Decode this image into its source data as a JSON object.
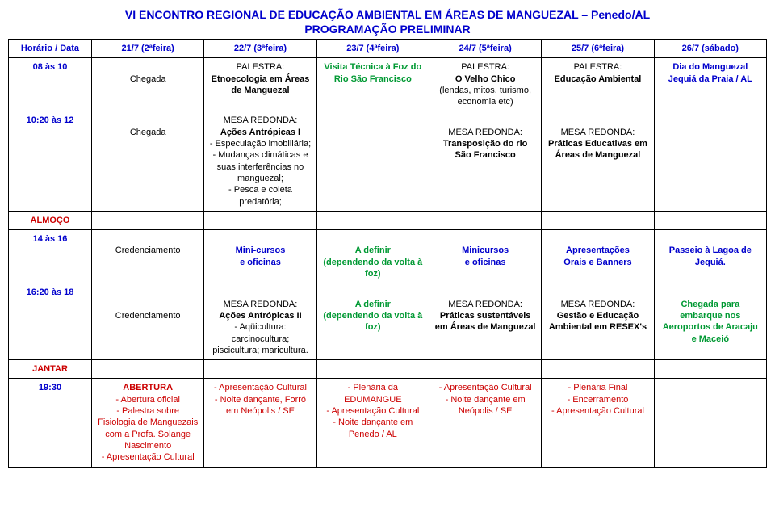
{
  "header": {
    "title": "VI ENCONTRO REGIONAL DE EDUCAÇÃO AMBIENTAL EM ÁREAS DE MANGUEZAL – Penedo/AL",
    "subtitle": "PROGRAMAÇÃO PRELIMINAR"
  },
  "columns": {
    "h0": "Horário / Data",
    "h1": "21/7 (2ªfeira)",
    "h2": "22/7 (3ªfeira)",
    "h3": "23/7 (4ªfeira)",
    "h4": "24/7 (5ªfeira)",
    "h5": "25/7 (6ªfeira)",
    "h6": "26/7 (sábado)"
  },
  "row1": {
    "time": "08 às 10",
    "c1": "Chegada",
    "c2a": "PALESTRA:",
    "c2b": "Etnoecologia em Áreas de Manguezal",
    "c3": "Visita Técnica à Foz do Rio São Francisco",
    "c4a": "PALESTRA:",
    "c4b": "O Velho Chico",
    "c4c": "(lendas, mitos, turismo, economia etc)",
    "c5a": "PALESTRA:",
    "c5b": "Educação Ambiental",
    "c6a": "Dia do Manguezal",
    "c6b": "Jequiá da Praia / AL"
  },
  "row2": {
    "time": "10:20 às 12",
    "c1": "Chegada",
    "c2a": "MESA REDONDA:",
    "c2b": "Ações Antrópicas I",
    "c2c": "- Especulação imobiliária;",
    "c2d": "- Mudanças climáticas e suas interferências no manguezal;",
    "c2e": "- Pesca e coleta predatória;",
    "c4a": "MESA REDONDA:",
    "c4b": "Transposição do rio São Francisco",
    "c5a": "MESA REDONDA:",
    "c5b": "Práticas Educativas em Áreas de Manguezal"
  },
  "almoco": {
    "label": "ALMOÇO"
  },
  "row3": {
    "time": "14 às 16",
    "c1": "Credenciamento",
    "c2a": "Mini-cursos",
    "c2b": "e oficinas",
    "c3a": "A definir",
    "c3b": "(dependendo da volta à foz)",
    "c4a": "Minicursos",
    "c4b": "e oficinas",
    "c5a": "Apresentações",
    "c5b": "Orais e Banners",
    "c6a": "Passeio à Lagoa de Jequiá."
  },
  "row4": {
    "time": "16:20 às 18",
    "c1": "Credenciamento",
    "c2a": "MESA REDONDA:",
    "c2b": "Ações Antrópicas II",
    "c2c": "- Aqüicultura: carcinocultura; piscicultura; maricultura.",
    "c3a": "A definir",
    "c3b": "(dependendo da volta à foz)",
    "c4a": "MESA REDONDA:",
    "c4b": "Práticas sustentáveis em Áreas de Manguezal",
    "c5a": "MESA REDONDA:",
    "c5b": "Gestão e Educação Ambiental em RESEX's",
    "c6a": "Chegada para embarque nos Aeroportos de Aracaju e Maceió"
  },
  "jantar": {
    "label": "JANTAR"
  },
  "row5": {
    "time": "19:30",
    "c1a": "ABERTURA",
    "c1b": "- Abertura oficial",
    "c1c": "- Palestra sobre Fisiologia de Manguezais com a Profa. Solange Nascimento",
    "c1d": "- Apresentação Cultural",
    "c2a": "- Apresentação Cultural",
    "c2b": "- Noite dançante, Forró em Neópolis / SE",
    "c3a": "- Plenária da EDUMANGUE",
    "c3b": "- Apresentação Cultural",
    "c3c": "- Noite dançante em Penedo / AL",
    "c4a": "- Apresentação Cultural",
    "c4b": "- Noite dançante em Neópolis / SE",
    "c5a": "- Plenária Final",
    "c5b": "- Encerramento",
    "c5c": "- Apresentação Cultural"
  }
}
